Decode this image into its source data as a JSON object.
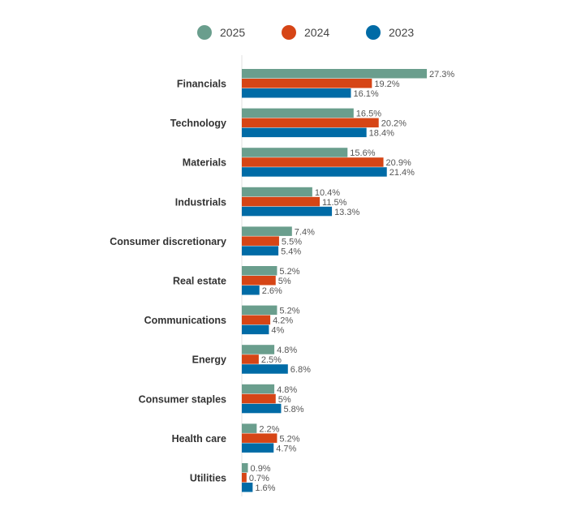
{
  "chart_data": {
    "type": "bar",
    "orientation": "horizontal",
    "categories": [
      "Financials",
      "Technology",
      "Materials",
      "Industrials",
      "Consumer discretionary",
      "Real estate",
      "Communications",
      "Energy",
      "Consumer staples",
      "Health care",
      "Utilities"
    ],
    "series": [
      {
        "name": "2025",
        "color": "#6a9e8d",
        "values": [
          27.3,
          16.5,
          15.6,
          10.4,
          7.4,
          5.2,
          5.2,
          4.8,
          4.8,
          2.2,
          0.9
        ],
        "labels": [
          "27.3%",
          "16.5%",
          "15.6%",
          "10.4%",
          "7.4%",
          "5.2%",
          "5.2%",
          "4.8%",
          "4.8%",
          "2.2%",
          "0.9%"
        ]
      },
      {
        "name": "2024",
        "color": "#d64516",
        "values": [
          19.2,
          20.2,
          20.9,
          11.5,
          5.5,
          5,
          4.2,
          2.5,
          5,
          5.2,
          0.7
        ],
        "labels": [
          "19.2%",
          "20.2%",
          "20.9%",
          "11.5%",
          "5.5%",
          "5%",
          "4.2%",
          "2.5%",
          "5%",
          "5.2%",
          "0.7%"
        ]
      },
      {
        "name": "2023",
        "color": "#006ba6",
        "values": [
          16.1,
          18.4,
          21.4,
          13.3,
          5.4,
          2.6,
          4,
          6.8,
          5.8,
          4.7,
          1.6
        ],
        "labels": [
          "16.1%",
          "18.4%",
          "21.4%",
          "13.3%",
          "5.4%",
          "2.6%",
          "4%",
          "6.8%",
          "5.8%",
          "4.7%",
          "1.6%"
        ]
      }
    ],
    "unit": "%",
    "legend": "top",
    "grid": false
  }
}
